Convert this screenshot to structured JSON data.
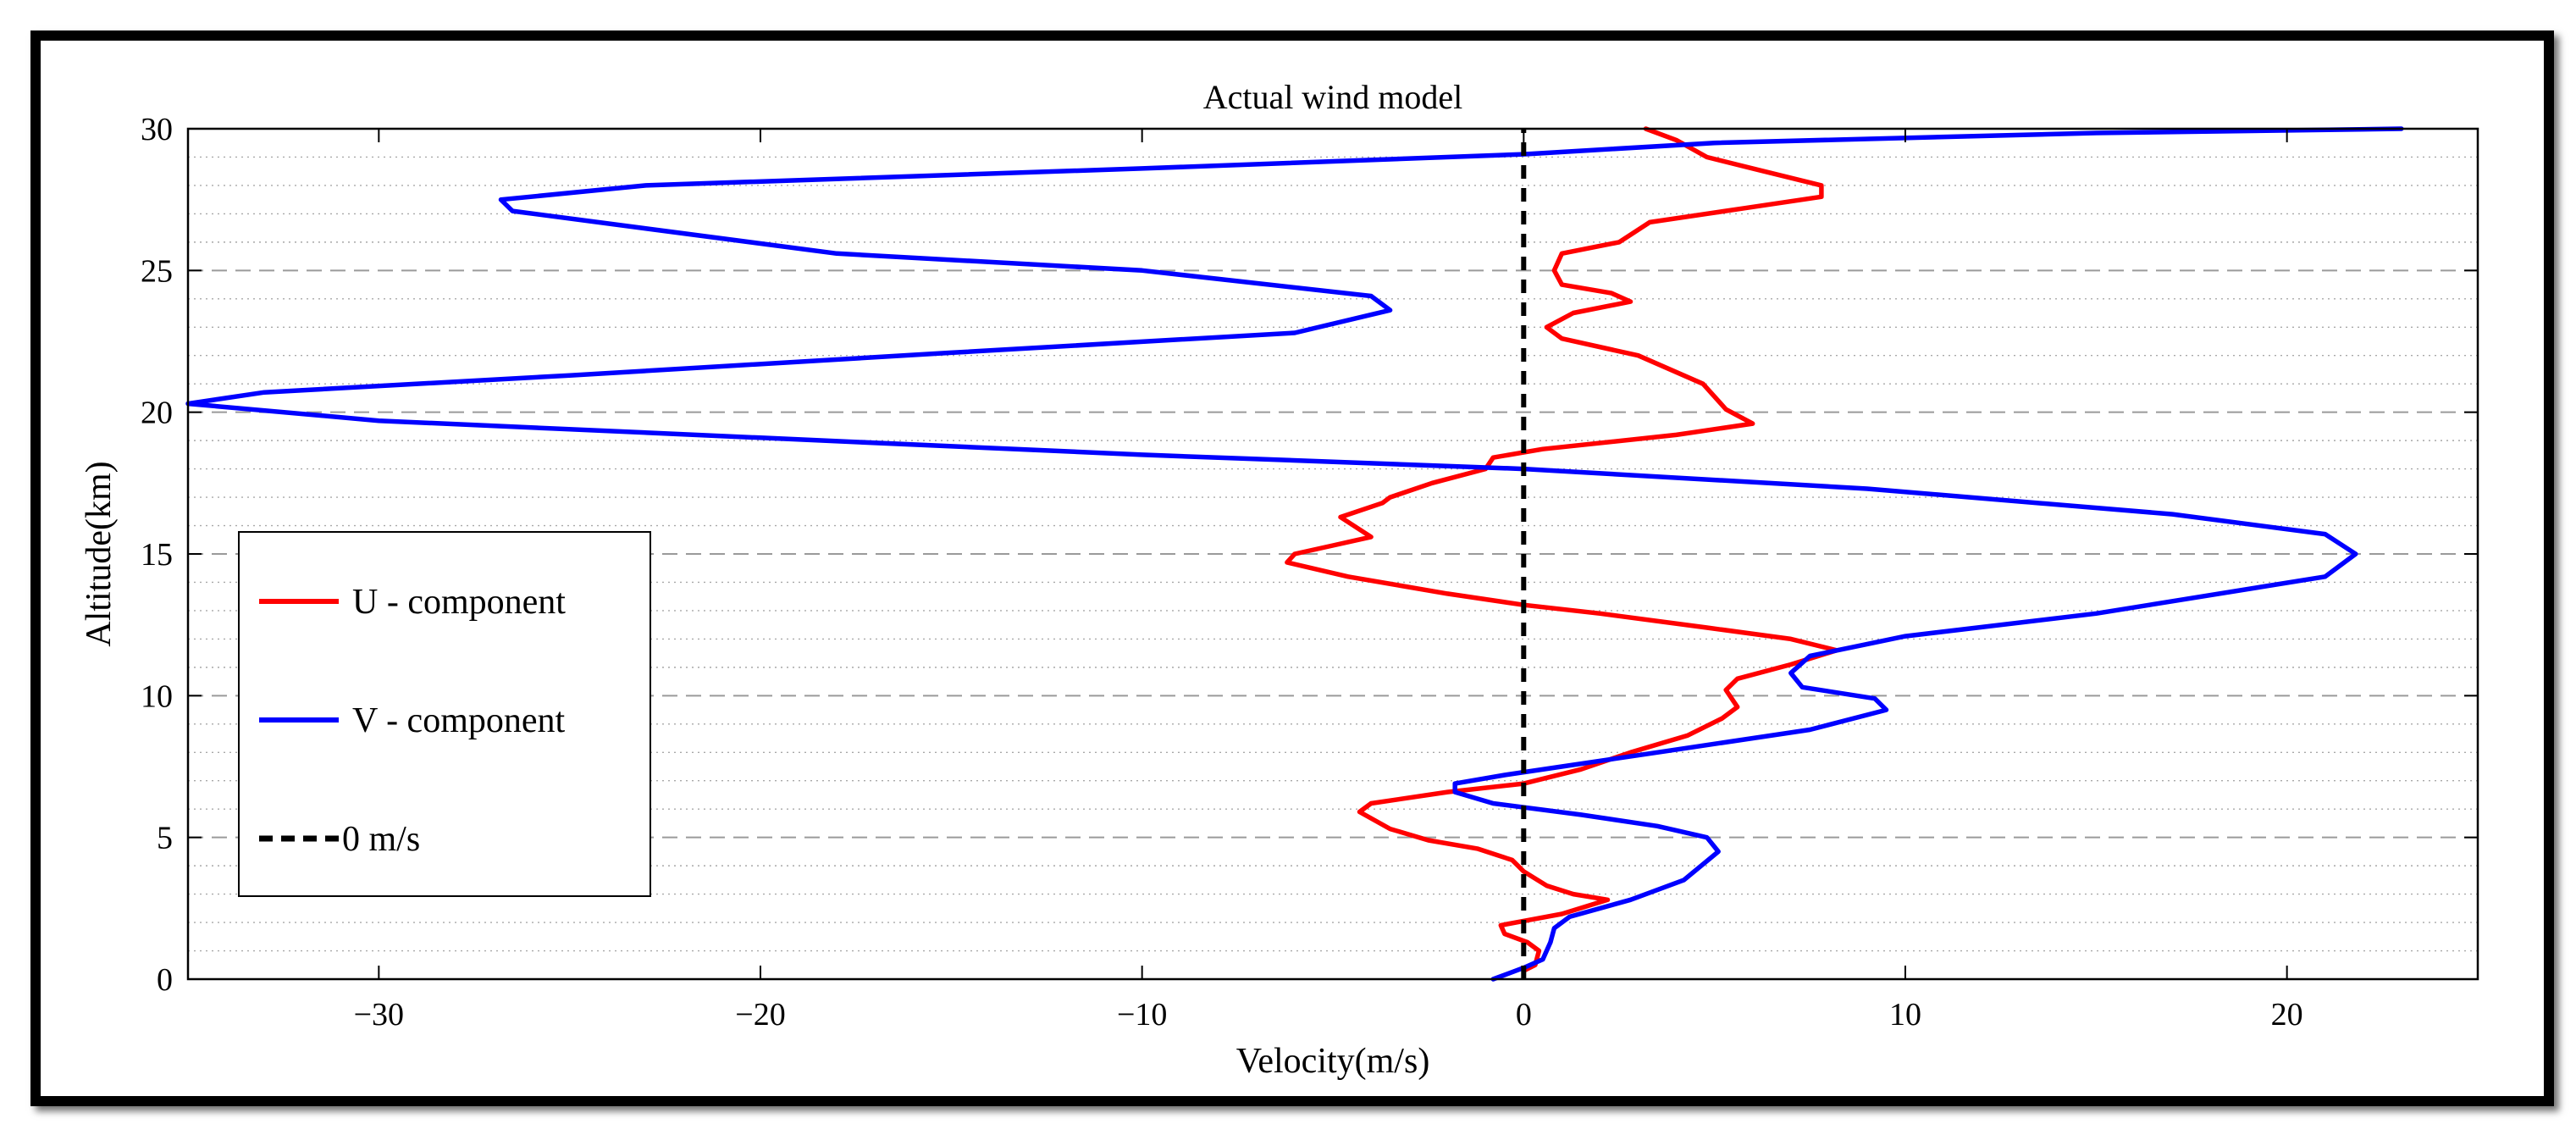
{
  "chart_data": {
    "type": "line",
    "title": "Actual wind model",
    "xlabel": "Velocity(m/s)",
    "ylabel": "Altitude(km)",
    "xlim": [
      -35,
      25
    ],
    "ylim": [
      0,
      30
    ],
    "x_ticks": [
      -30,
      -20,
      -10,
      0,
      10,
      20
    ],
    "y_ticks": [
      0,
      5,
      10,
      15,
      20,
      25,
      30
    ],
    "grid_major_y": [
      5,
      10,
      15,
      20,
      25
    ],
    "grid_minor_step": 1,
    "legend_position": "left",
    "series": [
      {
        "name": "U - component",
        "color": "#ff0000",
        "style": "solid",
        "points": [
          [
            0.0,
            0.3
          ],
          [
            0.3,
            0.5
          ],
          [
            0.4,
            1.0
          ],
          [
            0.1,
            1.3
          ],
          [
            -0.5,
            1.6
          ],
          [
            -0.6,
            1.9
          ],
          [
            0.2,
            2.1
          ],
          [
            1.0,
            2.3
          ],
          [
            2.2,
            2.8
          ],
          [
            1.3,
            3.0
          ],
          [
            0.6,
            3.3
          ],
          [
            0.0,
            3.8
          ],
          [
            -0.3,
            4.2
          ],
          [
            -1.2,
            4.6
          ],
          [
            -2.5,
            4.9
          ],
          [
            -3.5,
            5.3
          ],
          [
            -4.3,
            5.9
          ],
          [
            -4.0,
            6.2
          ],
          [
            -2.0,
            6.6
          ],
          [
            0.0,
            6.9
          ],
          [
            1.5,
            7.4
          ],
          [
            2.8,
            8.0
          ],
          [
            4.3,
            8.6
          ],
          [
            5.2,
            9.2
          ],
          [
            5.6,
            9.6
          ],
          [
            5.3,
            10.2
          ],
          [
            5.6,
            10.6
          ],
          [
            7.0,
            11.1
          ],
          [
            8.2,
            11.6
          ],
          [
            7.0,
            12.0
          ],
          [
            4.8,
            12.4
          ],
          [
            2.0,
            12.9
          ],
          [
            0.0,
            13.2
          ],
          [
            -2.0,
            13.6
          ],
          [
            -4.6,
            14.2
          ],
          [
            -6.2,
            14.7
          ],
          [
            -6.0,
            15.0
          ],
          [
            -5.0,
            15.3
          ],
          [
            -4.0,
            15.6
          ],
          [
            -4.8,
            16.3
          ],
          [
            -3.7,
            16.8
          ],
          [
            -3.5,
            17.0
          ],
          [
            -2.4,
            17.5
          ],
          [
            -1.0,
            18.0
          ],
          [
            -0.8,
            18.4
          ],
          [
            0.5,
            18.7
          ],
          [
            4.0,
            19.2
          ],
          [
            6.0,
            19.6
          ],
          [
            5.3,
            20.1
          ],
          [
            4.7,
            21.0
          ],
          [
            3.0,
            22.0
          ],
          [
            1.0,
            22.6
          ],
          [
            0.6,
            23.0
          ],
          [
            1.3,
            23.5
          ],
          [
            2.8,
            23.9
          ],
          [
            2.3,
            24.2
          ],
          [
            1.0,
            24.5
          ],
          [
            0.8,
            25.0
          ],
          [
            1.0,
            25.6
          ],
          [
            2.5,
            26.0
          ],
          [
            3.3,
            26.7
          ],
          [
            5.8,
            27.2
          ],
          [
            7.8,
            27.6
          ],
          [
            7.8,
            28.0
          ],
          [
            6.0,
            28.6
          ],
          [
            4.8,
            29.0
          ],
          [
            4.0,
            29.6
          ],
          [
            3.2,
            30.0
          ]
        ]
      },
      {
        "name": "V - component",
        "color": "#0000ff",
        "style": "solid",
        "points": [
          [
            -0.8,
            0.0
          ],
          [
            0.0,
            0.4
          ],
          [
            0.5,
            0.7
          ],
          [
            0.7,
            1.3
          ],
          [
            0.8,
            1.8
          ],
          [
            1.2,
            2.2
          ],
          [
            2.8,
            2.8
          ],
          [
            4.2,
            3.5
          ],
          [
            5.1,
            4.5
          ],
          [
            4.8,
            5.0
          ],
          [
            3.5,
            5.4
          ],
          [
            1.5,
            5.8
          ],
          [
            -0.8,
            6.2
          ],
          [
            -1.8,
            6.6
          ],
          [
            -1.8,
            6.9
          ],
          [
            -0.5,
            7.2
          ],
          [
            1.0,
            7.5
          ],
          [
            3.5,
            8.0
          ],
          [
            7.5,
            8.8
          ],
          [
            9.5,
            9.5
          ],
          [
            9.2,
            9.9
          ],
          [
            7.3,
            10.3
          ],
          [
            7.0,
            10.8
          ],
          [
            7.5,
            11.4
          ],
          [
            10.0,
            12.1
          ],
          [
            15.0,
            12.9
          ],
          [
            21.0,
            14.2
          ],
          [
            21.8,
            15.0
          ],
          [
            21.0,
            15.7
          ],
          [
            17.0,
            16.4
          ],
          [
            9.0,
            17.3
          ],
          [
            0.0,
            18.0
          ],
          [
            -10.0,
            18.5
          ],
          [
            -20.0,
            19.1
          ],
          [
            -30.0,
            19.7
          ],
          [
            -35.0,
            20.3
          ],
          [
            -33.0,
            20.7
          ],
          [
            -25.0,
            21.3
          ],
          [
            -15.0,
            22.1
          ],
          [
            -6.0,
            22.8
          ],
          [
            -3.5,
            23.6
          ],
          [
            -4.0,
            24.1
          ],
          [
            -10.0,
            25.0
          ],
          [
            -18.0,
            25.6
          ],
          [
            -26.5,
            27.1
          ],
          [
            -26.8,
            27.5
          ],
          [
            -23.0,
            28.0
          ],
          [
            -10.0,
            28.6
          ],
          [
            0.0,
            29.1
          ],
          [
            5.0,
            29.5
          ],
          [
            15.0,
            29.85
          ],
          [
            23.0,
            30.0
          ]
        ]
      },
      {
        "name": "0 m/s",
        "color": "#000000",
        "style": "dashed",
        "points": [
          [
            0,
            0
          ],
          [
            0,
            30
          ]
        ]
      }
    ]
  }
}
